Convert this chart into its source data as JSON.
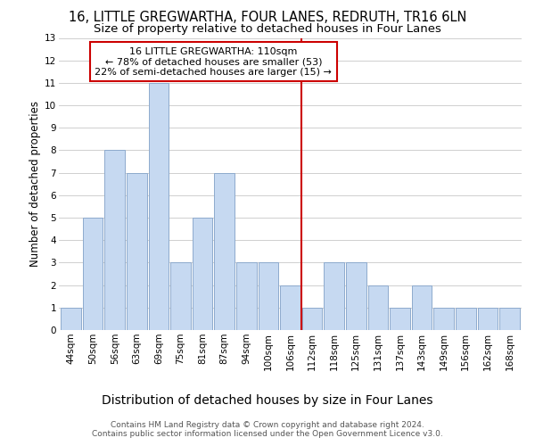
{
  "title": "16, LITTLE GREGWARTHA, FOUR LANES, REDRUTH, TR16 6LN",
  "subtitle": "Size of property relative to detached houses in Four Lanes",
  "xlabel_bottom": "Distribution of detached houses by size in Four Lanes",
  "ylabel": "Number of detached properties",
  "bin_labels": [
    "44sqm",
    "50sqm",
    "56sqm",
    "63sqm",
    "69sqm",
    "75sqm",
    "81sqm",
    "87sqm",
    "94sqm",
    "100sqm",
    "106sqm",
    "112sqm",
    "118sqm",
    "125sqm",
    "131sqm",
    "137sqm",
    "143sqm",
    "149sqm",
    "156sqm",
    "162sqm",
    "168sqm"
  ],
  "bar_values": [
    1,
    5,
    8,
    7,
    11,
    3,
    5,
    7,
    3,
    3,
    2,
    1,
    3,
    3,
    2,
    1,
    2,
    1,
    1,
    1,
    1
  ],
  "bar_color": "#c6d9f1",
  "bar_edgecolor": "#8eaacd",
  "grid_color": "#c8c8c8",
  "vline_color": "#cc0000",
  "annotation_box_text": "16 LITTLE GREGWARTHA: 110sqm\n← 78% of detached houses are smaller (53)\n22% of semi-detached houses are larger (15) →",
  "annotation_box_edgecolor": "#cc0000",
  "ylim": [
    0,
    13
  ],
  "yticks": [
    0,
    1,
    2,
    3,
    4,
    5,
    6,
    7,
    8,
    9,
    10,
    11,
    12,
    13
  ],
  "footnote": "Contains HM Land Registry data © Crown copyright and database right 2024.\nContains public sector information licensed under the Open Government Licence v3.0.",
  "bg_color": "#ffffff",
  "title_fontsize": 10.5,
  "subtitle_fontsize": 9.5,
  "ylabel_fontsize": 8.5,
  "tick_fontsize": 7.5,
  "annot_fontsize": 8,
  "xlabel_bottom_fontsize": 10,
  "footnote_fontsize": 6.5
}
